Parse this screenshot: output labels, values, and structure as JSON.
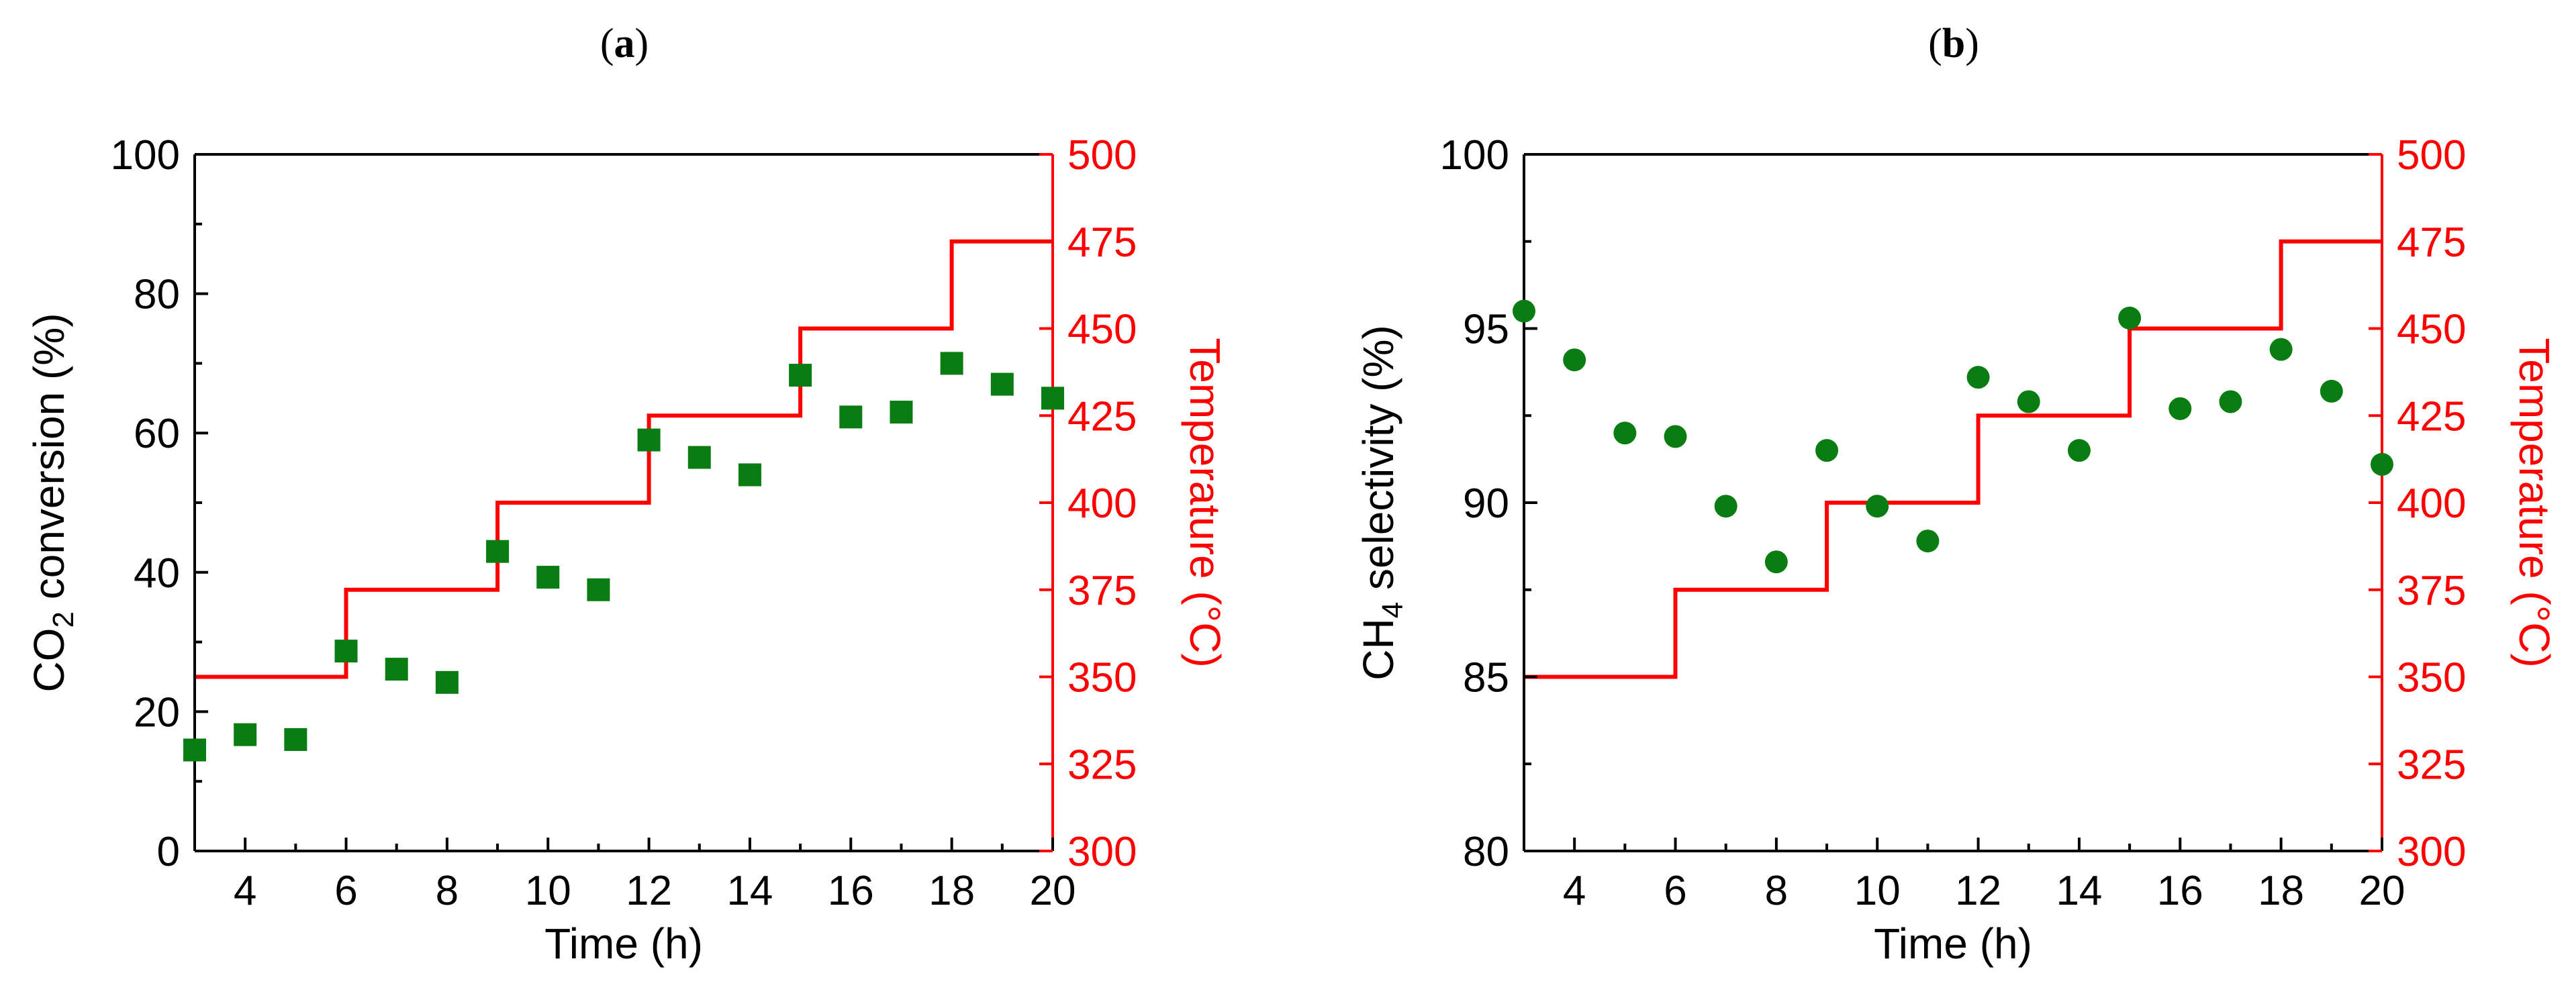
{
  "colors": {
    "marker": "#0a7d12",
    "temperature": "#ff0000",
    "axis": "#000000"
  },
  "chart_data": [
    {
      "panel_label": "a",
      "type": "scatter",
      "marker": "square",
      "xlabel": "Time (h)",
      "ylabel": {
        "main": "CO",
        "sub": "2",
        "rest": " conversion (%)"
      },
      "y2label": "Temperature (°C)",
      "xlim": [
        3,
        20
      ],
      "ylim": [
        0,
        100
      ],
      "y2lim": [
        300,
        500
      ],
      "xticks": [
        4,
        6,
        8,
        10,
        12,
        14,
        16,
        18,
        20
      ],
      "yticks": [
        0,
        20,
        40,
        60,
        80,
        100
      ],
      "y2ticks": [
        300,
        325,
        350,
        375,
        400,
        425,
        450,
        475,
        500
      ],
      "series": [
        {
          "x": [
            3,
            4,
            5,
            6,
            7,
            8,
            9,
            10,
            11,
            12,
            13,
            14,
            15,
            16,
            17,
            18,
            19,
            20
          ],
          "y": [
            14.5,
            16.7,
            16.0,
            28.7,
            26.1,
            24.2,
            43.0,
            39.3,
            37.5,
            59.0,
            56.5,
            54.0,
            68.3,
            62.3,
            63.0,
            70.0,
            67.0,
            65.0
          ]
        }
      ],
      "temperature_steps": {
        "x": [
          3,
          6,
          6,
          9,
          9,
          12,
          12,
          15,
          15,
          18,
          18,
          20
        ],
        "y": [
          350,
          350,
          375,
          375,
          400,
          400,
          425,
          425,
          450,
          450,
          475,
          475
        ]
      }
    },
    {
      "panel_label": "b",
      "type": "scatter",
      "marker": "circle",
      "xlabel": "Time (h)",
      "ylabel": {
        "main": "CH",
        "sub": "4",
        "rest": " selectivity (%)"
      },
      "y2label": "Temperature (°C)",
      "xlim": [
        3,
        20
      ],
      "ylim": [
        80,
        100
      ],
      "y2lim": [
        300,
        500
      ],
      "xticks": [
        4,
        6,
        8,
        10,
        12,
        14,
        16,
        18,
        20
      ],
      "yticks": [
        80,
        85,
        90,
        95,
        100
      ],
      "y2ticks": [
        300,
        325,
        350,
        375,
        400,
        425,
        450,
        475,
        500
      ],
      "series": [
        {
          "x": [
            3,
            4,
            5,
            6,
            7,
            8,
            9,
            10,
            11,
            12,
            13,
            14,
            15,
            16,
            17,
            18,
            19,
            20
          ],
          "y": [
            95.5,
            94.1,
            92.0,
            91.9,
            89.9,
            88.3,
            91.5,
            89.9,
            88.9,
            93.6,
            92.9,
            91.5,
            95.3,
            92.7,
            92.9,
            94.4,
            93.2,
            91.1
          ]
        }
      ],
      "temperature_steps": {
        "x": [
          3,
          6,
          6,
          9,
          9,
          12,
          12,
          15,
          15,
          18,
          18,
          20
        ],
        "y": [
          350,
          350,
          375,
          375,
          400,
          400,
          425,
          425,
          450,
          450,
          475,
          475
        ]
      }
    }
  ]
}
